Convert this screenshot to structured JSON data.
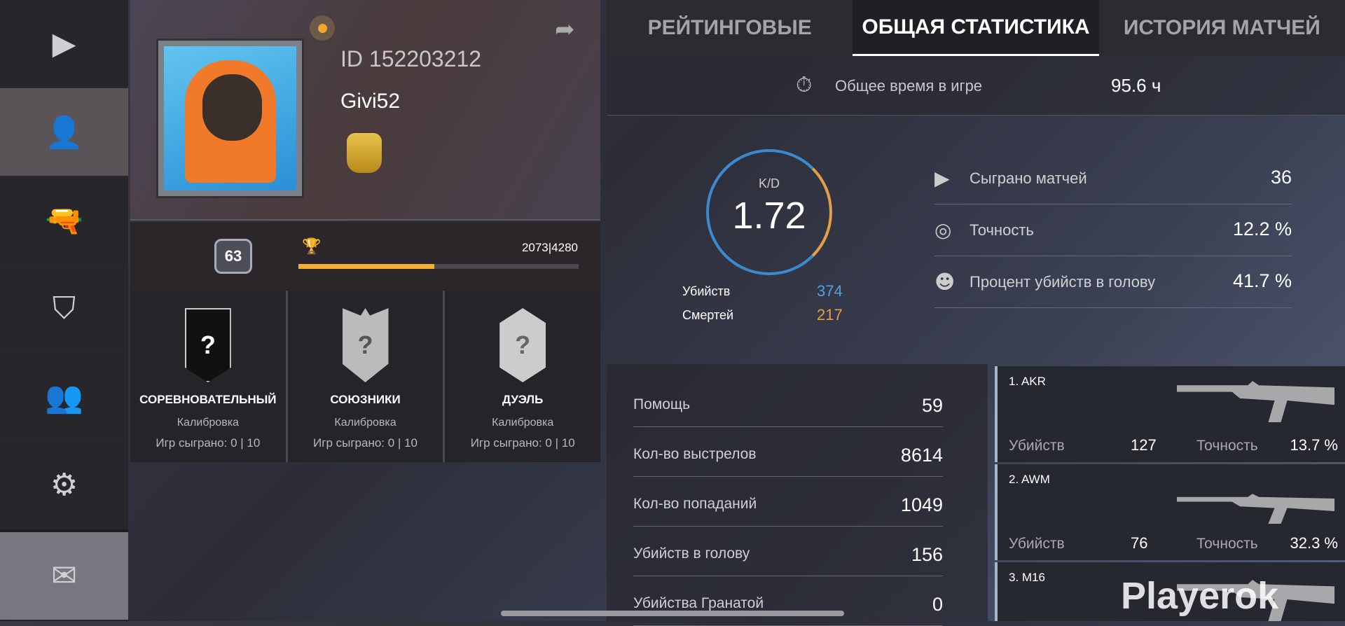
{
  "sidebar": {
    "items": [
      {
        "icon": "play-icon",
        "glyph": "▶"
      },
      {
        "icon": "profile-icon",
        "glyph": "👤"
      },
      {
        "icon": "pistol-icon",
        "glyph": "🔫"
      },
      {
        "icon": "clan-shield-icon",
        "glyph": "⛉"
      },
      {
        "icon": "friends-icon",
        "glyph": "👥"
      },
      {
        "icon": "settings-gear-icon",
        "glyph": "⚙"
      },
      {
        "icon": "mail-icon",
        "glyph": "✉"
      }
    ],
    "active_index": 1
  },
  "profile": {
    "id": "ID 152203212",
    "name": "Givi52",
    "level": "63",
    "xp": "2073|4280",
    "xp_fraction": 0.484
  },
  "modes": [
    {
      "title": "СОРЕВНОВАТЕЛЬНЫЙ",
      "status": "Калибровка",
      "games": "Игр сыграно: 0 | 10",
      "rank": "?"
    },
    {
      "title": "СОЮЗНИКИ",
      "status": "Калибровка",
      "games": "Игр сыграно: 0 | 10",
      "rank": "?"
    },
    {
      "title": "ДУЭЛЬ",
      "status": "Калибровка",
      "games": "Игр сыграно: 0 | 10",
      "rank": "?"
    }
  ],
  "tabs": [
    {
      "label": "РЕЙТИНГОВЫЕ"
    },
    {
      "label": "ОБЩАЯ СТАТИСТИКА",
      "active": true
    },
    {
      "label": "ИСТОРИЯ МАТЧЕЙ"
    }
  ],
  "playtime": {
    "label": "Общее время в игре",
    "value": "95.6 ч"
  },
  "kd": {
    "label": "K/D",
    "value": "1.72",
    "kills_label": "Убийств",
    "kills": "374",
    "deaths_label": "Смертей",
    "deaths": "217",
    "kills_color": "#4fa3e0",
    "deaths_color": "#e2a046"
  },
  "summary": [
    {
      "icon": "play-icon",
      "label": "Сыграно матчей",
      "value": "36"
    },
    {
      "icon": "target-icon",
      "label": "Точность",
      "value": "12.2 %"
    },
    {
      "icon": "headshot-icon",
      "label": "Процент убийств в голову",
      "value": "41.7 %"
    }
  ],
  "details": [
    {
      "label": "Помощь",
      "value": "59"
    },
    {
      "label": "Кол-во выстрелов",
      "value": "8614"
    },
    {
      "label": "Кол-во попаданий",
      "value": "1049"
    },
    {
      "label": "Убийств в голову",
      "value": "156"
    },
    {
      "label": "Убийства Гранатой",
      "value": "0"
    }
  ],
  "weapons": [
    {
      "name": "1. AKR",
      "kills_label": "Убийств",
      "kills": "127",
      "acc_label": "Точность",
      "accuracy": "13.7 %"
    },
    {
      "name": "2. AWM",
      "kills_label": "Убийств",
      "kills": "76",
      "acc_label": "Точность",
      "accuracy": "32.3 %"
    },
    {
      "name": "3. M16"
    }
  ],
  "watermark": "Playerok"
}
